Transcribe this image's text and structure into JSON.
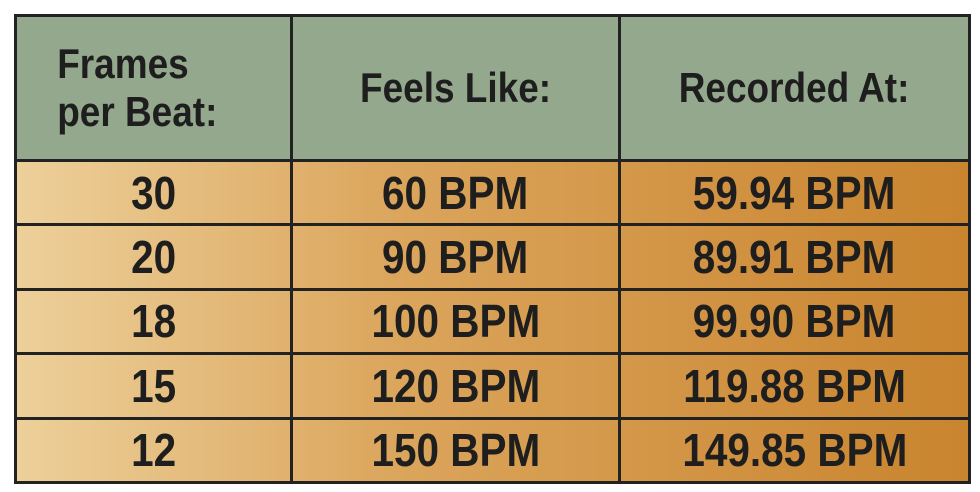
{
  "table": {
    "header": [
      "Frames per Beat:",
      "Feels Like:",
      "Recorded At:"
    ],
    "rows": [
      [
        "30",
        "60 BPM",
        "59.94 BPM"
      ],
      [
        "20",
        "90 BPM",
        "89.91 BPM"
      ],
      [
        "18",
        "100 BPM",
        "99.90 BPM"
      ],
      [
        "15",
        "120 BPM",
        "119.88 BPM"
      ],
      [
        "12",
        "150 BPM",
        "149.85 BPM"
      ]
    ]
  }
}
